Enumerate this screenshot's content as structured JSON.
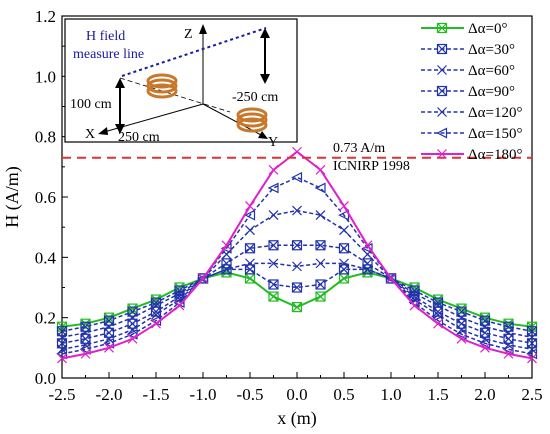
{
  "chart_data": {
    "type": "line",
    "xlabel": "x (m)",
    "ylabel": "H (A/m)",
    "xlim": [
      -2.5,
      2.5
    ],
    "ylim": [
      0.0,
      1.2
    ],
    "xticks": [
      "-2.5",
      "-2.0",
      "-1.5",
      "-1.0",
      "-0.5",
      "0.0",
      "0.5",
      "1.0",
      "1.5",
      "2.0",
      "2.5"
    ],
    "yticks": [
      "0.0",
      "0.2",
      "0.4",
      "0.6",
      "0.8",
      "1.0",
      "1.2"
    ],
    "legend_position": "top-right",
    "x": [
      -2.5,
      -2.25,
      -2.0,
      -1.75,
      -1.5,
      -1.25,
      -1.0,
      -0.75,
      -0.5,
      -0.25,
      0.0,
      0.25,
      0.5,
      0.75,
      1.0,
      1.25,
      1.5,
      1.75,
      2.0,
      2.25,
      2.5
    ],
    "series": [
      {
        "name": "Δα=0°",
        "color": "#22bb22",
        "marker": "boxed-x",
        "dash": "solid",
        "values": [
          0.17,
          0.18,
          0.2,
          0.23,
          0.26,
          0.3,
          0.33,
          0.35,
          0.33,
          0.27,
          0.235,
          0.27,
          0.33,
          0.35,
          0.33,
          0.3,
          0.26,
          0.23,
          0.2,
          0.18,
          0.17
        ]
      },
      {
        "name": "Δα=30°",
        "color": "#2233aa",
        "marker": "boxed-x",
        "dash": "dashed",
        "values": [
          0.155,
          0.17,
          0.19,
          0.22,
          0.25,
          0.29,
          0.33,
          0.36,
          0.36,
          0.31,
          0.3,
          0.31,
          0.36,
          0.36,
          0.33,
          0.29,
          0.25,
          0.22,
          0.19,
          0.17,
          0.155
        ]
      },
      {
        "name": "Δα=60°",
        "color": "#2233aa",
        "marker": "x",
        "dash": "dashed",
        "values": [
          0.135,
          0.15,
          0.17,
          0.2,
          0.24,
          0.28,
          0.33,
          0.36,
          0.38,
          0.38,
          0.37,
          0.38,
          0.38,
          0.36,
          0.33,
          0.28,
          0.24,
          0.2,
          0.17,
          0.15,
          0.135
        ]
      },
      {
        "name": "Δα=90°",
        "color": "#2233aa",
        "marker": "boxed-x",
        "dash": "dashed",
        "values": [
          0.115,
          0.13,
          0.15,
          0.18,
          0.22,
          0.27,
          0.33,
          0.38,
          0.43,
          0.44,
          0.44,
          0.44,
          0.43,
          0.38,
          0.33,
          0.27,
          0.22,
          0.18,
          0.15,
          0.13,
          0.115
        ]
      },
      {
        "name": "Δα=120°",
        "color": "#2233aa",
        "marker": "x",
        "dash": "dashed",
        "values": [
          0.095,
          0.11,
          0.13,
          0.16,
          0.21,
          0.26,
          0.33,
          0.41,
          0.49,
          0.54,
          0.555,
          0.54,
          0.49,
          0.41,
          0.33,
          0.26,
          0.21,
          0.16,
          0.13,
          0.11,
          0.095
        ]
      },
      {
        "name": "Δα=150°",
        "color": "#2233aa",
        "marker": "triangle-left",
        "dash": "dashed",
        "values": [
          0.08,
          0.095,
          0.115,
          0.145,
          0.19,
          0.25,
          0.33,
          0.43,
          0.54,
          0.63,
          0.665,
          0.63,
          0.54,
          0.43,
          0.33,
          0.25,
          0.19,
          0.145,
          0.115,
          0.095,
          0.08
        ]
      },
      {
        "name": "Δα=180°",
        "color": "#dd22cc",
        "marker": "x",
        "dash": "solid",
        "values": [
          0.065,
          0.08,
          0.1,
          0.13,
          0.18,
          0.24,
          0.33,
          0.44,
          0.57,
          0.69,
          0.75,
          0.69,
          0.57,
          0.44,
          0.33,
          0.24,
          0.18,
          0.13,
          0.1,
          0.08,
          0.065
        ]
      }
    ],
    "reference_line": {
      "value": 0.73,
      "label_value": "0.73 A/m",
      "label_standard": "ICNIRP 1998",
      "color": "#dd3333"
    },
    "inset": {
      "title_line1": "H field",
      "title_line2": "measure line",
      "axis_z": "Z",
      "axis_x": "X",
      "axis_y": "Y",
      "dim_height": "100 cm",
      "dim_x": "250 cm",
      "dim_y": "-250 cm",
      "line_color": "#1a1aa0",
      "coil_color": "#c8782a"
    }
  }
}
